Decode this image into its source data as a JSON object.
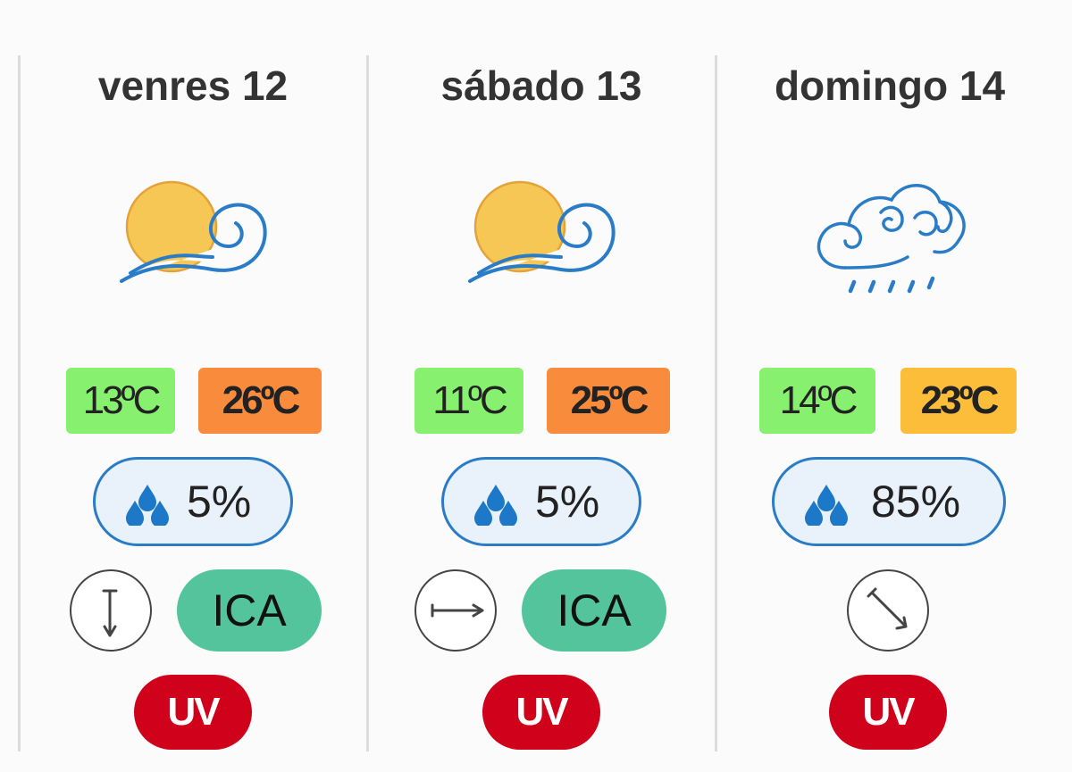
{
  "days": [
    {
      "title": "venres 12",
      "icon": "sun-wind-icon",
      "temp_min": "13ºC",
      "temp_max": "26ºC",
      "temp_min_color": "#87f06e",
      "temp_max_color": "#f98c3c",
      "rain_pct": "5%",
      "wind_icon": "wind-arrow-south-icon",
      "ica": "ICA",
      "uv": "UV"
    },
    {
      "title": "sábado 13",
      "icon": "sun-wind-icon",
      "temp_min": "11ºC",
      "temp_max": "25ºC",
      "temp_min_color": "#87f06e",
      "temp_max_color": "#f98c3c",
      "rain_pct": "5%",
      "wind_icon": "wind-arrow-east-icon",
      "ica": "ICA",
      "uv": "UV"
    },
    {
      "title": "domingo 14",
      "icon": "cloud-wind-rain-icon",
      "temp_min": "14ºC",
      "temp_max": "23ºC",
      "temp_min_color": "#87f06e",
      "temp_max_color": "#fbbd3a",
      "rain_pct": "85%",
      "wind_icon": "wind-arrow-southeast-icon",
      "ica": "",
      "uv": "UV"
    }
  ],
  "colors": {
    "rain_border": "#2a7cc7",
    "rain_bg": "#e9f2fa",
    "ica_bg": "#53c49b",
    "uv_bg": "#d0021b"
  }
}
